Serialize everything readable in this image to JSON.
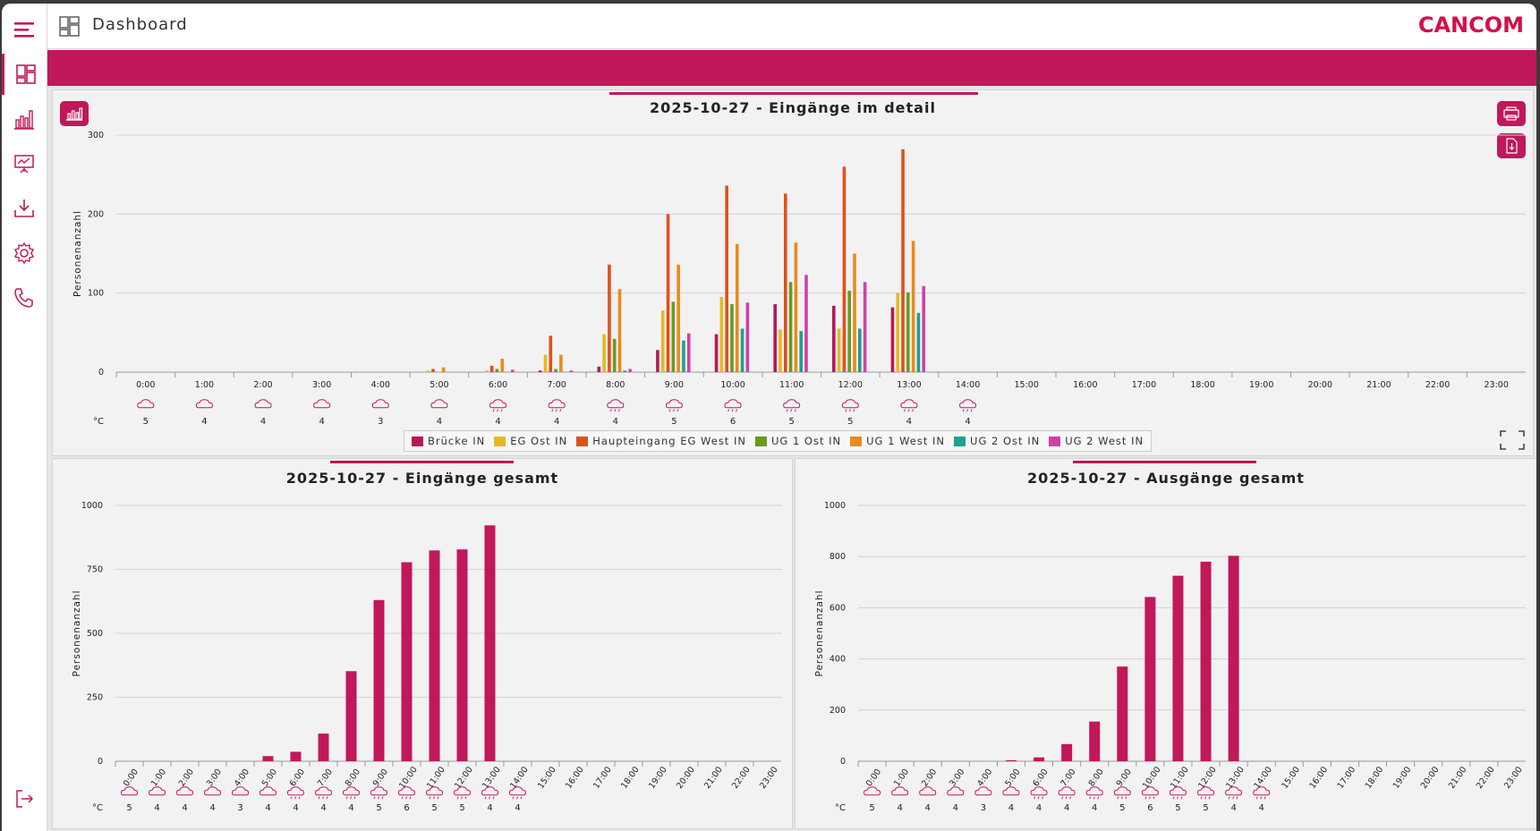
{
  "header": {
    "title": "Dashboard",
    "logo": "CANCOM",
    "menu_icon": "hamburger-icon",
    "dashboard_icon": "dashboard-icon"
  },
  "sidebar": {
    "items": [
      {
        "name": "dashboard",
        "icon": "dashboard-icon",
        "active": true
      },
      {
        "name": "statistics",
        "icon": "bar-chart-icon"
      },
      {
        "name": "presentation",
        "icon": "presentation-icon"
      },
      {
        "name": "download",
        "icon": "download-icon"
      },
      {
        "name": "settings",
        "icon": "gear-icon"
      },
      {
        "name": "contact",
        "icon": "phone-icon"
      }
    ],
    "logout_icon": "logout-icon"
  },
  "colors": {
    "accent": "#c0185a",
    "series": [
      "#b5195a",
      "#e8b820",
      "#e0501a",
      "#6a9a20",
      "#e88a20",
      "#20a090",
      "#d040a8"
    ]
  },
  "weather": {
    "unit": "°C",
    "temps": [
      5,
      4,
      4,
      4,
      3,
      4,
      4,
      4,
      4,
      5,
      6,
      5,
      5,
      4,
      4
    ],
    "icons": [
      "cloud",
      "cloud",
      "cloud",
      "cloud",
      "cloud",
      "cloud",
      "cloud-rain",
      "cloud-rain",
      "cloud-rain",
      "cloud-rain",
      "cloud-rain",
      "cloud-rain",
      "cloud-rain",
      "cloud-rain",
      "cloud-rain"
    ]
  },
  "chart_data": [
    {
      "type": "bar",
      "title": "2025-10-27 - Eingänge im detail",
      "ylabel": "Personenanzahl",
      "ylim": [
        0,
        300
      ],
      "yticks": [
        0,
        100,
        200,
        300
      ],
      "grid": true,
      "legend": "bottom",
      "categories": [
        "0:00",
        "1:00",
        "2:00",
        "3:00",
        "4:00",
        "5:00",
        "6:00",
        "7:00",
        "8:00",
        "9:00",
        "10:00",
        "11:00",
        "12:00",
        "13:00",
        "14:00",
        "15:00",
        "16:00",
        "17:00",
        "18:00",
        "19:00",
        "20:00",
        "21:00",
        "22:00",
        "23:00"
      ],
      "series": [
        {
          "name": "Brücke IN",
          "values": [
            0,
            0,
            0,
            0,
            0,
            0,
            0,
            2,
            7,
            28,
            48,
            86,
            84,
            82,
            0,
            0,
            0,
            0,
            0,
            0,
            0,
            0,
            0,
            0
          ]
        },
        {
          "name": "EG Ost IN",
          "values": [
            0,
            0,
            0,
            0,
            0,
            2,
            2,
            22,
            48,
            78,
            95,
            54,
            55,
            100,
            0,
            0,
            0,
            0,
            0,
            0,
            0,
            0,
            0,
            0
          ]
        },
        {
          "name": "Haupteingang EG West IN",
          "values": [
            0,
            0,
            0,
            0,
            0,
            4,
            8,
            46,
            136,
            200,
            236,
            226,
            260,
            282,
            0,
            0,
            0,
            0,
            0,
            0,
            0,
            0,
            0,
            0
          ]
        },
        {
          "name": "UG 1 Ost IN",
          "values": [
            0,
            0,
            0,
            0,
            0,
            0,
            4,
            4,
            42,
            89,
            86,
            114,
            103,
            101,
            0,
            0,
            0,
            0,
            0,
            0,
            0,
            0,
            0,
            0
          ]
        },
        {
          "name": "UG 1 West IN",
          "values": [
            0,
            0,
            0,
            0,
            0,
            6,
            17,
            22,
            105,
            136,
            162,
            164,
            150,
            166,
            0,
            0,
            0,
            0,
            0,
            0,
            0,
            0,
            0,
            0
          ]
        },
        {
          "name": "UG 2 Ost IN",
          "values": [
            0,
            0,
            0,
            0,
            0,
            0,
            0,
            0,
            2,
            40,
            55,
            52,
            55,
            75,
            0,
            0,
            0,
            0,
            0,
            0,
            0,
            0,
            0,
            0
          ]
        },
        {
          "name": "UG 2 West IN",
          "values": [
            0,
            0,
            0,
            0,
            0,
            0,
            3,
            2,
            4,
            49,
            88,
            123,
            114,
            109,
            0,
            0,
            0,
            0,
            0,
            0,
            0,
            0,
            0,
            0
          ]
        }
      ]
    },
    {
      "type": "bar",
      "title": "2025-10-27 - Eingänge gesamt",
      "ylabel": "Personenanzahl",
      "ylim": [
        0,
        1000
      ],
      "yticks": [
        0,
        250,
        500,
        750,
        1000
      ],
      "grid": true,
      "categories": [
        "0:00",
        "1:00",
        "2:00",
        "3:00",
        "4:00",
        "5:00",
        "6:00",
        "7:00",
        "8:00",
        "9:00",
        "10:00",
        "11:00",
        "12:00",
        "13:00",
        "14:00",
        "15:00",
        "16:00",
        "17:00",
        "18:00",
        "19:00",
        "20:00",
        "21:00",
        "22:00",
        "23:00"
      ],
      "values": [
        0,
        0,
        0,
        0,
        0,
        20,
        37,
        108,
        352,
        630,
        778,
        824,
        828,
        922,
        0,
        0,
        0,
        0,
        0,
        0,
        0,
        0,
        0,
        0
      ]
    },
    {
      "type": "bar",
      "title": "2025-10-27 - Ausgänge gesamt",
      "ylabel": "Personenanzahl",
      "ylim": [
        0,
        1000
      ],
      "yticks": [
        0,
        200,
        400,
        600,
        800,
        1000
      ],
      "grid": true,
      "categories": [
        "0:00",
        "1:00",
        "2:00",
        "3:00",
        "4:00",
        "5:00",
        "6:00",
        "7:00",
        "8:00",
        "9:00",
        "10:00",
        "11:00",
        "12:00",
        "13:00",
        "14:00",
        "15:00",
        "16:00",
        "17:00",
        "18:00",
        "19:00",
        "20:00",
        "21:00",
        "22:00",
        "23:00"
      ],
      "values": [
        0,
        0,
        0,
        0,
        0,
        4,
        15,
        67,
        155,
        370,
        642,
        725,
        780,
        803,
        0,
        0,
        0,
        0,
        0,
        0,
        0,
        0,
        0,
        0
      ]
    }
  ]
}
